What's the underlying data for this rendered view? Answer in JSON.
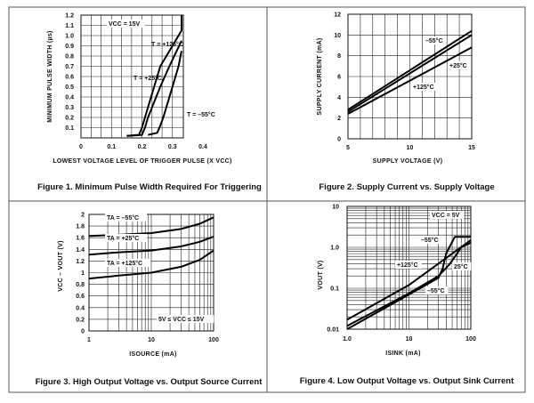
{
  "chart_data": [
    {
      "type": "line",
      "caption": "Figure 1. Minimum Pulse Width Required For Triggering",
      "xlabel": "LOWEST VOLTAGE LEVEL OF TRIGGER PULSE (X VCC)",
      "ylabel": "MINIMUM PULSE WIDTH (µs)",
      "xlim": [
        0,
        0.4
      ],
      "ylim": [
        0,
        1.2
      ],
      "xticks": [
        "0",
        "0.1",
        "0.2",
        "0.3",
        "0.4"
      ],
      "yticks": [
        "0.1",
        "0.2",
        "0.3",
        "0.4",
        "0.5",
        "0.6",
        "0.7",
        "0.8",
        "0.9",
        "1.0",
        "1.1",
        "1.2"
      ],
      "grid": true,
      "annotations": [
        "VCC = 15V",
        "T = +125°C",
        "T = +25°C",
        "T = –55°C"
      ],
      "series": [
        {
          "name": "T = +125°C",
          "x": [
            0.15,
            0.19,
            0.2,
            0.21,
            0.24,
            0.26,
            0.3,
            0.33,
            0.33
          ],
          "y": [
            0.02,
            0.03,
            0.1,
            0.2,
            0.5,
            0.7,
            0.9,
            1.05,
            1.2
          ]
        },
        {
          "name": "T = +25°C",
          "x": [
            0.15,
            0.2,
            0.21,
            0.22,
            0.26,
            0.29,
            0.33
          ],
          "y": [
            0.02,
            0.03,
            0.1,
            0.2,
            0.5,
            0.7,
            0.95
          ]
        },
        {
          "name": "T = –55°C",
          "x": [
            0.22,
            0.25,
            0.26,
            0.27,
            0.3,
            0.32,
            0.33
          ],
          "y": [
            0.03,
            0.05,
            0.12,
            0.2,
            0.5,
            0.7,
            0.85
          ]
        }
      ]
    },
    {
      "type": "line",
      "caption": "Figure 2. Supply Current vs. Supply Voltage",
      "xlabel": "SUPPLY VOLTAGE (V)",
      "ylabel": "SUPPLY CURRENT (mA)",
      "xlim": [
        5,
        15
      ],
      "ylim": [
        0,
        12
      ],
      "xticks": [
        "5",
        "10",
        "15"
      ],
      "yticks": [
        "0",
        "2",
        "4",
        "6",
        "8",
        "10",
        "12"
      ],
      "grid": true,
      "annotations": [
        "–55°C",
        "+25°C",
        "+125°C"
      ],
      "series": [
        {
          "name": "–55°C",
          "x": [
            5,
            15
          ],
          "y": [
            2.8,
            10.4
          ]
        },
        {
          "name": "+25°C",
          "x": [
            5,
            15
          ],
          "y": [
            2.6,
            10.0
          ]
        },
        {
          "name": "+125°C",
          "x": [
            5,
            15
          ],
          "y": [
            2.4,
            8.8
          ]
        }
      ]
    },
    {
      "type": "line",
      "caption": "Figure 3. High Output Voltage vs. Output Source Current",
      "xlabel": "ISOURCE (mA)",
      "ylabel": "VCC – VOUT (V)",
      "xscale": "log",
      "xlim": [
        1,
        100
      ],
      "ylim": [
        0,
        2
      ],
      "xticks": [
        "1",
        "10",
        "100"
      ],
      "yticks": [
        "0",
        "0.2",
        "0.4",
        "0.6",
        "0.8",
        "1",
        "1.2",
        "1.4",
        "1.6",
        "1.8",
        "2"
      ],
      "grid": true,
      "annotations": [
        "TA = –55°C",
        "TA = +25°C",
        "TA = +125°C",
        "5V ≤ VCC ≤ 15V"
      ],
      "series": [
        {
          "name": "TA = –55°C",
          "x": [
            1,
            3,
            10,
            30,
            60,
            100
          ],
          "y": [
            1.63,
            1.65,
            1.68,
            1.75,
            1.84,
            1.95
          ]
        },
        {
          "name": "TA = +25°C",
          "x": [
            1,
            3,
            10,
            30,
            60,
            100
          ],
          "y": [
            1.31,
            1.35,
            1.38,
            1.45,
            1.53,
            1.62
          ]
        },
        {
          "name": "TA = +125°C",
          "x": [
            1,
            3,
            10,
            30,
            60,
            100
          ],
          "y": [
            0.9,
            0.95,
            1.0,
            1.1,
            1.22,
            1.38
          ]
        }
      ]
    },
    {
      "type": "line",
      "caption": "Figure 4. Low Output Voltage vs. Output Sink Current",
      "xlabel": "ISINK (mA)",
      "ylabel": "VOUT (V)",
      "xscale": "log",
      "yscale": "log",
      "xlim": [
        1,
        100
      ],
      "ylim": [
        0.01,
        10
      ],
      "xticks": [
        "1.0",
        "10",
        "100"
      ],
      "yticks": [
        "0.01",
        "0.1",
        "1.0",
        "10"
      ],
      "grid": true,
      "annotations": [
        "VCC = 5V",
        "–55°C",
        "+125°C",
        "25°C",
        "–55°C"
      ],
      "series": [
        {
          "name": "+125°C",
          "x": [
            1,
            10,
            100
          ],
          "y": [
            0.017,
            0.12,
            1.5
          ]
        },
        {
          "name": "25°C",
          "x": [
            1,
            10,
            30,
            45,
            60,
            70,
            100
          ],
          "y": [
            0.012,
            0.075,
            0.2,
            0.38,
            0.7,
            1.0,
            1.3
          ]
        },
        {
          "name": "–55°C",
          "x": [
            1,
            10,
            30,
            35,
            40,
            45,
            55,
            100
          ],
          "y": [
            0.01,
            0.07,
            0.18,
            0.3,
            0.7,
            1.0,
            1.8,
            1.8
          ]
        }
      ]
    }
  ]
}
